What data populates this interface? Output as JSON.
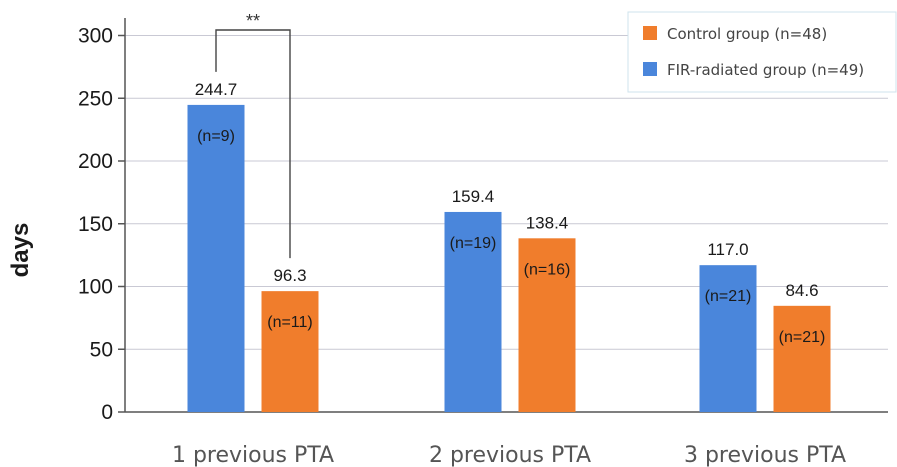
{
  "chart_data": {
    "type": "bar",
    "ylabel": "days",
    "ylim": [
      0,
      300
    ],
    "yticks": [
      0,
      50,
      100,
      150,
      200,
      250,
      300
    ],
    "categories": [
      "1 previous PTA",
      "2 previous PTA",
      "3 previous PTA"
    ],
    "series": [
      {
        "name": "FIR-radiated group (n=49)",
        "color": "#4a86db",
        "values": [
          244.7,
          159.4,
          117.0
        ],
        "value_labels": [
          "244.7",
          "159.4",
          "117.0"
        ],
        "n_labels": [
          "(n=9)",
          "(n=19)",
          "(n=21)"
        ]
      },
      {
        "name": "Control group (n=48)",
        "color": "#f07d2c",
        "values": [
          96.3,
          138.4,
          84.6
        ],
        "value_labels": [
          "96.3",
          "138.4",
          "84.6"
        ],
        "n_labels": [
          "(n=11)",
          "(n=16)",
          "(n=21)"
        ]
      }
    ],
    "legend_order": [
      1,
      0
    ],
    "legend_position": "top-right",
    "grid": true,
    "significance": {
      "category_index": 0,
      "label": "**"
    }
  }
}
